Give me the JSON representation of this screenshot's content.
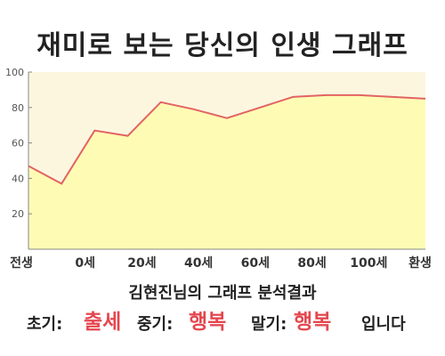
{
  "title": "재미로 보는 당신의 인생 그래프",
  "colors": {
    "plot_background": "#fcf6df",
    "area_fill": "#fefcb4",
    "line": "#e36363",
    "axis": "#888888",
    "grid": "#e8e4d0",
    "result_value": "#e5474f"
  },
  "chart_data": {
    "type": "area",
    "title": "재미로 보는 당신의 인생 그래프",
    "xlabel": "",
    "ylabel": "",
    "x_tick_labels": [
      "전생",
      "0세",
      "20세",
      "40세",
      "60세",
      "80세",
      "100세",
      "환생"
    ],
    "x": [
      "전생",
      "0세",
      "20세",
      "30세",
      "40세",
      "50세",
      "60세",
      "70세",
      "80세",
      "90세",
      "100세",
      "110세",
      "환생"
    ],
    "values": [
      47,
      37,
      67,
      64,
      83,
      79,
      74,
      80,
      86,
      87,
      87,
      86,
      85
    ],
    "ylim": [
      0,
      100
    ],
    "y_ticks": [
      20,
      40,
      60,
      80,
      100
    ],
    "grid": false,
    "legend": "none"
  },
  "summary": {
    "heading": "김현진님의 그래프 분석결과",
    "early_label": "초기:",
    "early_value": "출세",
    "middle_label": "중기:",
    "middle_value": "행복",
    "late_label": "말기:",
    "late_value": "행복",
    "ending": "입니다"
  }
}
